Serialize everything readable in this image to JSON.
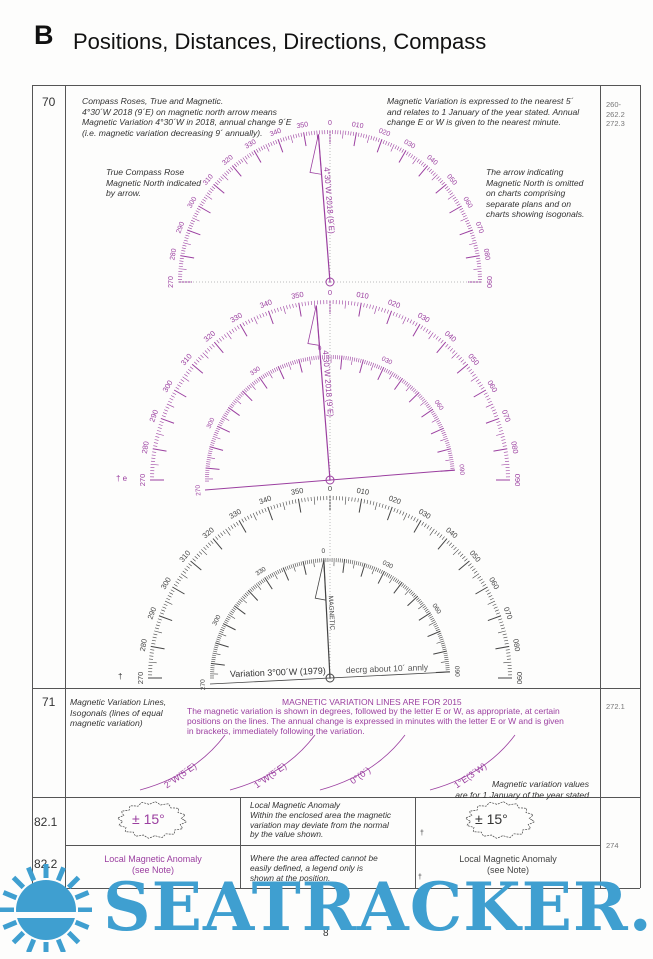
{
  "header": {
    "section_letter": "B",
    "title": "Positions, Distances, Directions, Compass"
  },
  "colors": {
    "magenta": "#9b3fa0",
    "black": "#444444",
    "watermark": "#3f9fd0"
  },
  "row70": {
    "number": "70",
    "left_note": [
      "Compass Roses, True and Magnetic.",
      "4°30´W 2018 (9´E) on magnetic north arrow means",
      "Magnetic Variation 4°30´W in 2018, annual change 9´E",
      "(i.e. magnetic variation decreasing 9´ annually)."
    ],
    "right_note": [
      "Magnetic Variation is expressed to the nearest 5´",
      "and relates to 1 January of the year stated. Annual",
      "change E or W is given to the nearest minute."
    ],
    "true_rose_note": [
      "True Compass Rose",
      "Magnetic North indicated",
      "by arrow."
    ],
    "arrow_note": [
      "The arrow indicating",
      "Magnetic North is omitted",
      "on charts comprising",
      "separate plans and on",
      "charts showing isogonals."
    ],
    "refs": [
      "260-",
      "262.2",
      "272.3"
    ],
    "arrow_label": "4°30´W 2018 (9´E)",
    "outer_labels": [
      "270",
      "280",
      "290",
      "300",
      "310",
      "320",
      "330",
      "340",
      "350",
      "0",
      "010",
      "020",
      "030",
      "040",
      "050",
      "060",
      "070",
      "080",
      "090"
    ],
    "inner_labels": [
      "270",
      "300",
      "330",
      "0",
      "030",
      "060",
      "090"
    ],
    "magnetic_label": "MAGNETIC",
    "variation_label": "Variation 3°00´W (1979)",
    "decrease_label": "decrg about 10´ annly",
    "dagger": "†",
    "dagger_e": "† e"
  },
  "row71": {
    "number": "71",
    "left_note": [
      "Magnetic Variation Lines,",
      "Isogonals (lines of equal",
      "magnetic variation)"
    ],
    "heading": "MAGNETIC VARIATION LINES ARE FOR 2015",
    "body": [
      "The magnetic variation is shown in degrees, followed by the letter E or W, as appropriate, at certain",
      "positions on the lines. The annual change is expressed in minutes with the letter E or W and is given",
      "in brackets, immediately following the variation."
    ],
    "isogonals": [
      "2°W(5´E)",
      "1°W(5´E)",
      "0°(0´)",
      "1°E(3´W)"
    ],
    "footnote": [
      "Magnetic  variation values",
      "are for 1 January of the year stated"
    ],
    "ref": "272.1"
  },
  "row82_1": {
    "number": "82.1",
    "symbol": "± 15°",
    "description": [
      "Local Magnetic Anomaly",
      "Within the enclosed area the magnetic",
      "variation may deviate from the normal",
      "by the value shown."
    ],
    "symbol_alt": "± 15°",
    "dagger": "†"
  },
  "row82_2": {
    "number": "82.2",
    "legend": [
      "Local Magnetic Anomaly",
      "(see Note)"
    ],
    "description": [
      "Where the area affected cannot be",
      "easily defined, a legend only is",
      "shown at the position."
    ],
    "legend_alt": [
      "Local Magnetic Anomaly",
      "(see Note)"
    ],
    "dagger": "†",
    "ref": "274"
  },
  "footer": {
    "page_number": "8"
  },
  "watermark": "SEATRACKER.RU"
}
